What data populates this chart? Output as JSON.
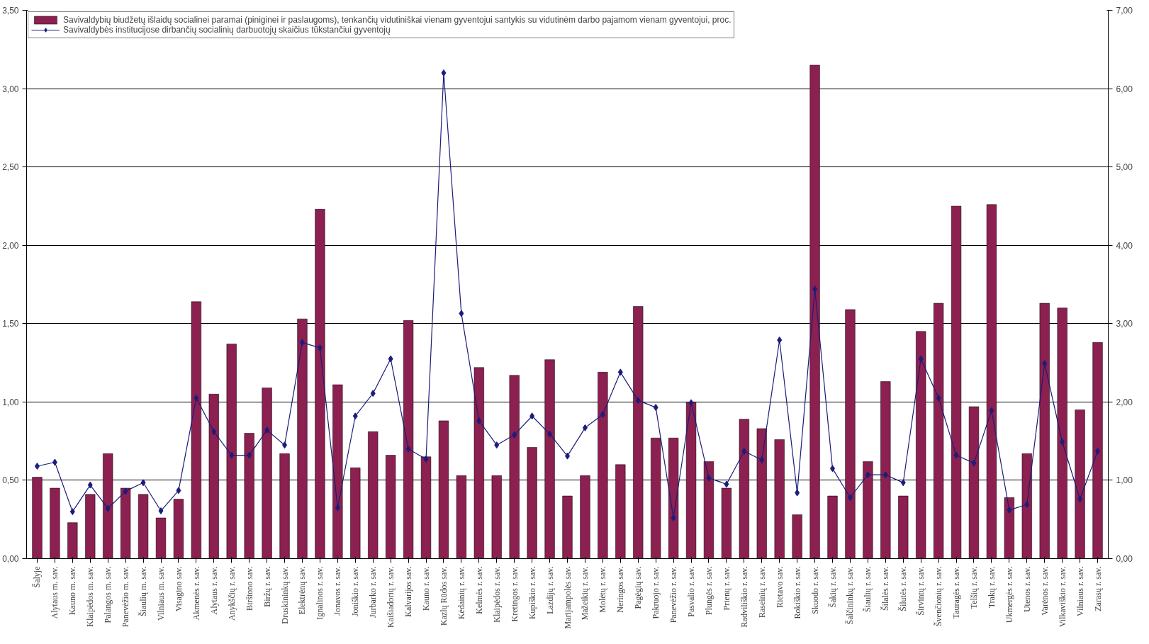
{
  "chart_data": {
    "type": "bar",
    "categories": [
      "Šalyje",
      "Alytaus m. sav.",
      "Kauno m. sav.",
      "Klaipėdos m. sav.",
      "Palangos m. sav.",
      "Panevėžio m. sav.",
      "Šiaulių m. sav.",
      "Vilniaus m. sav.",
      "Visagino sav.",
      "Akmenės r. sav.",
      "Alytaus r. sav.",
      "Anykščių r. sav.",
      "Birštono sav.",
      "Biržų r. sav.",
      "Druskininkų sav.",
      "Elektrėnų sav.",
      "Ignalinos r. sav.",
      "Jonavos r. sav.",
      "Joniškio r. sav.",
      "Jurbarko r. sav.",
      "Kaišiadorių r. sav.",
      "Kalvarijos sav.",
      "Kauno r. sav.",
      "Kazlų Rūdos sav.",
      "Kėdainių r. sav.",
      "Kelmės r. sav.",
      "Klaipėdos r. sav.",
      "Kretingos r. sav.",
      "Kupiškio r. sav.",
      "Lazdijų r. sav.",
      "Marijampolės sav.",
      "Mažeikių r. sav.",
      "Molėtų r. sav.",
      "Neringos sav.",
      "Pagėgių sav.",
      "Pakruojo r. sav.",
      "Panevėžio r. sav.",
      "Pasvalio r. sav.",
      "Plungės r. sav.",
      "Prienų r. sav.",
      "Radviliškio r. sav.",
      "Raseinių r. sav.",
      "Rietavo sav.",
      "Rokiškio r. sav.",
      "Skuodo r. sav.",
      "Šakių r. sav.",
      "Šalčininkų r. sav.",
      "Šiaulių r. sav.",
      "Šilalės r. sav.",
      "Šilutės r. sav.",
      "Širvintų r. sav.",
      "Švenčionių r. sav.",
      "Tauragės r. sav.",
      "Telšių r. sav.",
      "Trakų r. sav.",
      "Ukmergės r. sav.",
      "Utenos r. sav.",
      "Varėnos r. sav.",
      "Vilkaviškio r. sav.",
      "Vilniaus r. sav.",
      "Zarasų r. sav."
    ],
    "series": [
      {
        "name": "Savivaldybių biudžetų išlaidų socialinei paramai (piniginei ir paslaugoms), tenkančių vidutiniškai vienam gyventojui santykis su vidutinėm darbo pajamom vienam gyventojui, proc.",
        "color": "#8c2050",
        "values": [
          0.52,
          0.45,
          0.23,
          0.41,
          0.67,
          0.45,
          0.41,
          0.26,
          0.38,
          1.64,
          1.05,
          1.37,
          0.8,
          1.09,
          0.67,
          1.53,
          2.23,
          1.11,
          0.58,
          0.81,
          0.66,
          1.52,
          0.65,
          0.88,
          0.53,
          1.22,
          0.53,
          1.17,
          0.71,
          1.27,
          0.4,
          0.53,
          1.19,
          0.6,
          1.61,
          0.77,
          0.77,
          1.0,
          0.62,
          0.45,
          0.89,
          0.83,
          0.76,
          0.28,
          3.15,
          0.4,
          1.59,
          0.62,
          1.13,
          0.4,
          1.45,
          1.63,
          2.25,
          0.97,
          2.26,
          0.39,
          0.67,
          1.63,
          1.6,
          0.95,
          1.38
        ]
      },
      {
        "type": "line",
        "axis": "y2",
        "marker": "diamond",
        "name": "Savivaldybės institucijose dirbančių socialinių darbuotojų skaičius tūkstančiui gyventojų",
        "color": "#1c1c7c",
        "values": [
          1.18,
          1.23,
          0.6,
          0.94,
          0.64,
          0.86,
          0.97,
          0.61,
          0.87,
          2.05,
          1.62,
          1.32,
          1.32,
          1.64,
          1.45,
          2.76,
          2.69,
          0.65,
          1.82,
          2.11,
          2.55,
          1.4,
          1.27,
          6.2,
          3.13,
          1.76,
          1.45,
          1.58,
          1.82,
          1.59,
          1.31,
          1.67,
          1.84,
          2.38,
          2.02,
          1.93,
          0.52,
          1.99,
          1.03,
          0.95,
          1.37,
          1.26,
          2.79,
          0.84,
          3.44,
          1.15,
          0.78,
          1.07,
          1.07,
          0.97,
          2.55,
          2.05,
          1.32,
          1.22,
          1.89,
          0.62,
          0.69,
          2.49,
          1.49,
          0.76,
          1.37
        ]
      }
    ],
    "ylim": [
      0,
      3.5
    ],
    "yticks": [
      {
        "value": 0,
        "label": "0,00"
      },
      {
        "value": 0.5,
        "label": "0,50"
      },
      {
        "value": 1,
        "label": "1,00"
      },
      {
        "value": 1.5,
        "label": "1,50"
      },
      {
        "value": 2,
        "label": "2,00"
      },
      {
        "value": 2.5,
        "label": "2,50"
      },
      {
        "value": 3,
        "label": "3,00"
      },
      {
        "value": 3.5,
        "label": "3,50"
      }
    ],
    "y2lim": [
      0,
      7
    ],
    "y2ticks": [
      {
        "value": 0,
        "label": "0,00"
      },
      {
        "value": 1,
        "label": "1,00"
      },
      {
        "value": 2,
        "label": "2,00"
      },
      {
        "value": 3,
        "label": "3,00"
      },
      {
        "value": 4,
        "label": "4,00"
      },
      {
        "value": 5,
        "label": "5,00"
      },
      {
        "value": 6,
        "label": "6,00"
      },
      {
        "value": 7,
        "label": "7,00"
      }
    ],
    "grid": "y",
    "legend": "top left"
  }
}
